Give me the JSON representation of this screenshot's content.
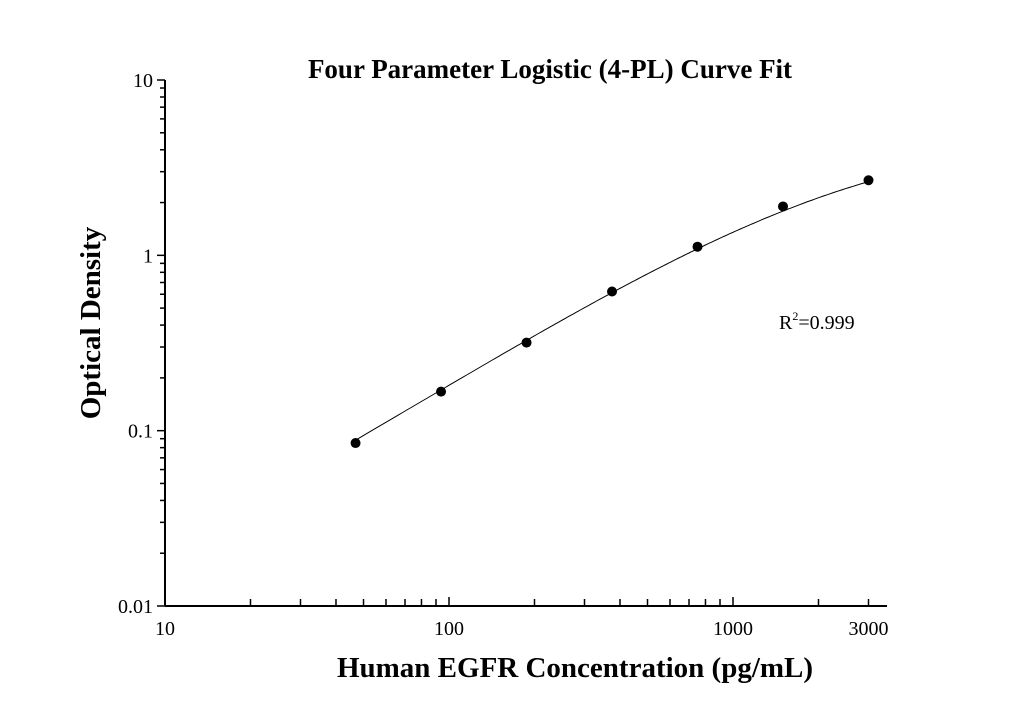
{
  "chart_data": {
    "type": "scatter",
    "title": "Four Parameter Logistic (4-PL) Curve Fit",
    "xlabel": "Human EGFR Concentration (pg/mL)",
    "ylabel": "Optical Density",
    "xscale": "log",
    "yscale": "log",
    "xlim": [
      10,
      3500
    ],
    "ylim": [
      0.01,
      10
    ],
    "x_tick_labels": [
      "10",
      "100",
      "1000",
      "3000"
    ],
    "x_ticks": [
      10,
      100,
      1000,
      3000
    ],
    "y_tick_labels": [
      "0.01",
      "0.1",
      "1",
      "10"
    ],
    "y_ticks": [
      0.01,
      0.1,
      1,
      10
    ],
    "grid": false,
    "legend": "none",
    "annotation": {
      "label": "R",
      "superscript": "2",
      "value": "=0.999"
    },
    "series": [
      {
        "x": [
          46.875,
          93.75,
          187.5,
          375,
          750,
          1500,
          3000
        ],
        "y": [
          0.085,
          0.167,
          0.318,
          0.622,
          1.12,
          1.9,
          2.68
        ],
        "marker": "filled-circle",
        "fit": "4-PL curve",
        "color": "#000000"
      }
    ]
  }
}
